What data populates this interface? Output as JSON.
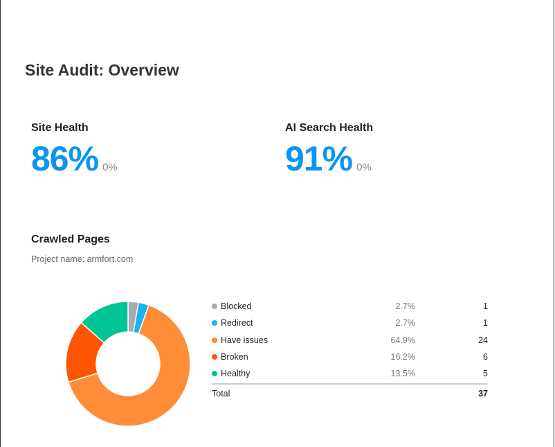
{
  "page_title": "Site Audit: Overview",
  "metrics": [
    {
      "label": "Site Health",
      "value": "86%",
      "delta": "0%"
    },
    {
      "label": "AI Search Health",
      "value": "91%",
      "delta": "0%"
    }
  ],
  "crawled": {
    "title": "Crawled Pages",
    "project": "Project name: armfort.com",
    "total_label": "Total",
    "total": "37"
  },
  "chart_data": {
    "type": "pie",
    "title": "Crawled Pages",
    "categories": [
      "Blocked",
      "Redirect",
      "Have issues",
      "Broken",
      "Healthy"
    ],
    "values": [
      1,
      1,
      24,
      6,
      5
    ],
    "percent_labels": [
      "2.7%",
      "2.7%",
      "64.9%",
      "16.2%",
      "13.5%"
    ],
    "count_labels": [
      "1",
      "1",
      "24",
      "6",
      "5"
    ],
    "colors": [
      "#a8abb3",
      "#1ab3f5",
      "#ff8c36",
      "#ff5500",
      "#00c494"
    ],
    "legend": "right"
  }
}
